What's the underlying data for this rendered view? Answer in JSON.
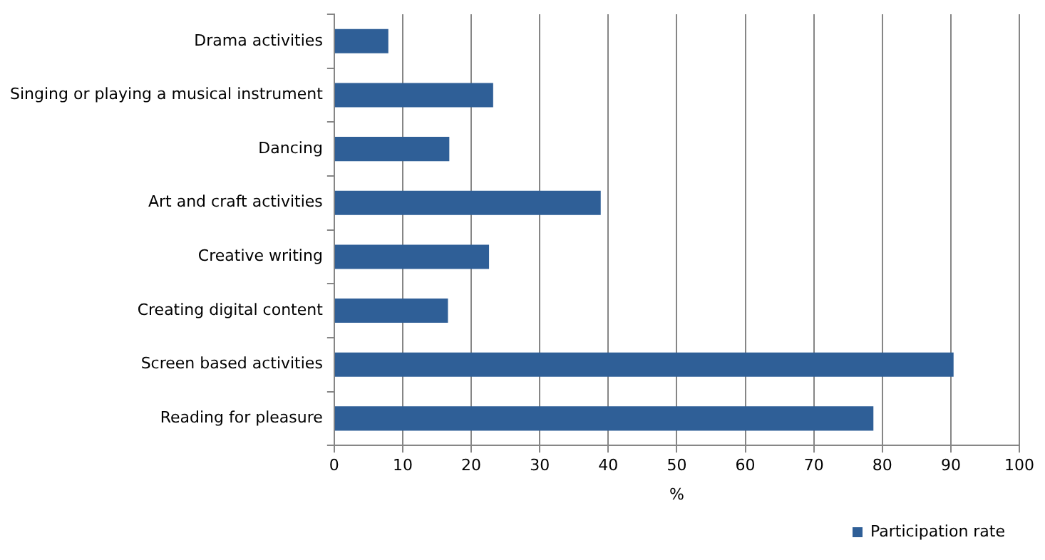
{
  "chart_data": {
    "type": "bar",
    "orientation": "horizontal",
    "xlabel": "%",
    "categories": [
      "Drama activities",
      "Singing or playing a musical instrument",
      "Dancing",
      "Art and craft activities",
      "Creative writing",
      "Creating digital content",
      "Screen based activities",
      "Reading for pleasure"
    ],
    "series": [
      {
        "name": "Participation rate",
        "color": "#2f5f97",
        "values": [
          7.9,
          23.2,
          16.8,
          38.9,
          22.6,
          16.6,
          90.4,
          78.7
        ]
      }
    ],
    "xlim": [
      0,
      100
    ],
    "xticks": [
      0,
      10,
      20,
      30,
      40,
      50,
      60,
      70,
      80,
      90,
      100
    ],
    "grid": "x",
    "legend": "bottom right"
  }
}
